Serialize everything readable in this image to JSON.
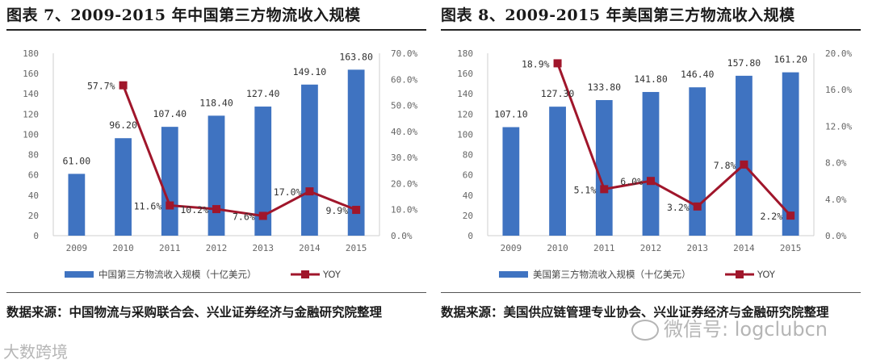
{
  "colors": {
    "bar": "#3f73c1",
    "line": "#a0162b",
    "axis": "#cfcfcf"
  },
  "charts": [
    {
      "title": "图表 7、2009-2015 年中国第三方物流收入规模",
      "source": "数据来源：中国物流与采购联合会、兴业证券经济与金融研究院整理",
      "chart_data": {
        "type": "bar",
        "categories": [
          "2009",
          "2010",
          "2011",
          "2012",
          "2013",
          "2014",
          "2015"
        ],
        "series": [
          {
            "name": "中国第三方物流收入规模（十亿美元）",
            "type": "bar",
            "axis": "left",
            "values": [
              61.0,
              96.2,
              107.4,
              118.4,
              127.4,
              149.1,
              163.8
            ],
            "labels": [
              "61.00",
              "96.20",
              "107.40",
              "118.40",
              "127.40",
              "149.10",
              "163.80"
            ]
          },
          {
            "name": "YOY",
            "type": "line",
            "axis": "right",
            "values": [
              null,
              57.7,
              11.6,
              10.2,
              7.6,
              17.0,
              9.9
            ],
            "labels": [
              "",
              "57.7%",
              "11.6%",
              "10.2%",
              "7.6%",
              "17.0%",
              "9.9%"
            ]
          }
        ],
        "y_left": {
          "min": 0,
          "max": 180,
          "step": 20,
          "ticks": [
            "0",
            "20",
            "40",
            "60",
            "80",
            "100",
            "120",
            "140",
            "160",
            "180"
          ]
        },
        "y_right": {
          "min": 0,
          "max": 70,
          "step": 10,
          "ticks": [
            "0.0%",
            "10.0%",
            "20.0%",
            "30.0%",
            "40.0%",
            "50.0%",
            "60.0%",
            "70.0%"
          ]
        },
        "legend_position": "bottom",
        "grid": false
      }
    },
    {
      "title": "图表 8、2009-2015 年美国第三方物流收入规模",
      "source": "数据来源：美国供应链管理专业协会、兴业证券经济与金融研究院整理",
      "chart_data": {
        "type": "bar",
        "categories": [
          "2009",
          "2010",
          "2011",
          "2012",
          "2013",
          "2014",
          "2015"
        ],
        "series": [
          {
            "name": "美国第三方物流收入规模（十亿美元）",
            "type": "bar",
            "axis": "left",
            "values": [
              107.1,
              127.3,
              133.8,
              141.8,
              146.4,
              157.8,
              161.2
            ],
            "labels": [
              "107.10",
              "127.30",
              "133.80",
              "141.80",
              "146.40",
              "157.80",
              "161.20"
            ]
          },
          {
            "name": "YOY",
            "type": "line",
            "axis": "right",
            "values": [
              null,
              18.9,
              5.1,
              6.0,
              3.2,
              7.8,
              2.2
            ],
            "labels": [
              "",
              "18.9%",
              "5.1%",
              "6.0%",
              "3.2%",
              "7.8%",
              "2.2%"
            ]
          }
        ],
        "y_left": {
          "min": 0,
          "max": 180,
          "step": 20,
          "ticks": [
            "0",
            "20",
            "40",
            "60",
            "80",
            "100",
            "120",
            "140",
            "160",
            "180"
          ]
        },
        "y_right": {
          "min": 0,
          "max": 20,
          "step": 4,
          "ticks": [
            "0.0%",
            "4.0%",
            "8.0%",
            "12.0%",
            "16.0%",
            "20.0%"
          ]
        },
        "legend_position": "bottom",
        "grid": false
      }
    }
  ],
  "watermarks": {
    "left": "大数跨境",
    "right": "微信号: logclubcn"
  }
}
